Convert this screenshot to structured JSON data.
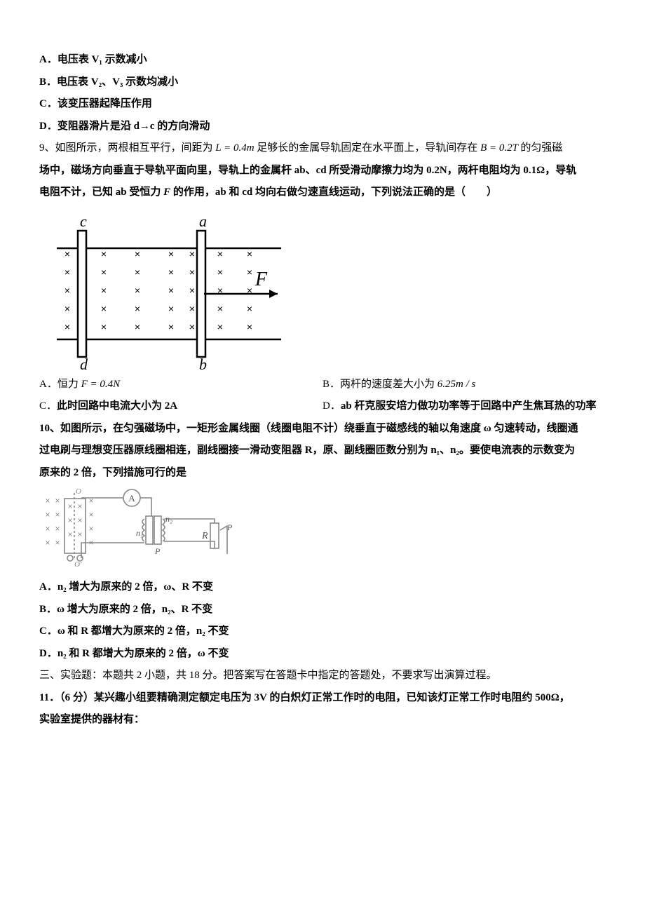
{
  "q8": {
    "optA": "电压表 V₁ 示数减小",
    "optB": "电压表 V₂、V₃ 示数均减小",
    "optC": "该变压器起降压作用",
    "optD": "变阻器滑片是沿 d→c 的方向滑动"
  },
  "q9": {
    "stem1": "9、如图所示，两根相互平行，间距为",
    "L_eq": " L = 0.4m ",
    "stem2": "足够长的金属导轨固定在水平面上，导轨间存在",
    "B_eq": " B = 0.2T ",
    "stem3": "的匀强磁",
    "line2a": "场中，磁场方向垂直于导轨平面向里，导轨上的金属杆 ab、cd 所受滑动摩擦力均为 0.2N，两杆电阻均为 0.1Ω，导轨",
    "line3a": "电阻不计，已知 ab 受恒力 ",
    "line3b": " 的作用，ab 和 cd 均向右做匀速直线运动，下列说法正确的是（　　）",
    "optA_pre": "恒力",
    "optA_eq": " F = 0.4N",
    "optB_pre": "两杆的速度差大小为",
    "optB_eq": " 6.25m / s",
    "optC": "此时回路中电流大小为 2A",
    "optD": "ab 杆克服安培力做功功率等于回路中产生焦耳热的功率",
    "diagram": {
      "labels": {
        "c": "c",
        "d": "d",
        "a": "a",
        "b": "b",
        "F": "F"
      },
      "stroke": "#000000",
      "font": "italic 20px 'Times New Roman'",
      "Ffont": "italic 26px 'Times New Roman'",
      "cross": "×"
    }
  },
  "q10": {
    "line1": "10、如图所示，在匀强磁场中，一矩形金属线圈（线圈电阻不计）绕垂直于磁感线的轴以角速度 ω 匀速转动，线圈通",
    "line2": "过电刷与理想变压器原线圈相连，副线圈接一滑动变阻器 R，原、副线圈匝数分别为 n₁、n₂。要使电流表的示数变为",
    "line3": "原来的 2 倍，下列措施可行的是",
    "optA": "n₂ 增大为原来的 2 倍，ω、R 不变",
    "optB": "ω 增大为原来的 2 倍，n₂、R 不变",
    "optC": "ω 和 R 都增大为原来的 2 倍，n₂ 不变",
    "optD": "n₂ 和 R 都增大为原来的 2 倍，ω 不变",
    "diagram": {
      "stroke": "#888888",
      "cross": "×",
      "A": "A",
      "n1": "n₁",
      "n2": "n₂",
      "P": "P",
      "R": "R",
      "O": "O",
      "Op": "O′"
    }
  },
  "sec3": {
    "heading": "三、实验题：本题共 2 小题，共 18 分。把答案写在答题卡中指定的答题处，不要求写出演算过程。",
    "q11a": "11．（6 分）某兴趣小组要精确测定额定电压为 3V 的白炽灯正常工作时的电阻，已知该灯正常工作时电阻约 500",
    "q11b": "，",
    "q11c": "实验室提供的器材有："
  },
  "lbl": {
    "A": "A．",
    "B": "B．",
    "C": "C．",
    "D": "D．",
    "Acn": "A．",
    "Bcn": "B．",
    "Ccn": "C．",
    "Dcn": "D．"
  }
}
